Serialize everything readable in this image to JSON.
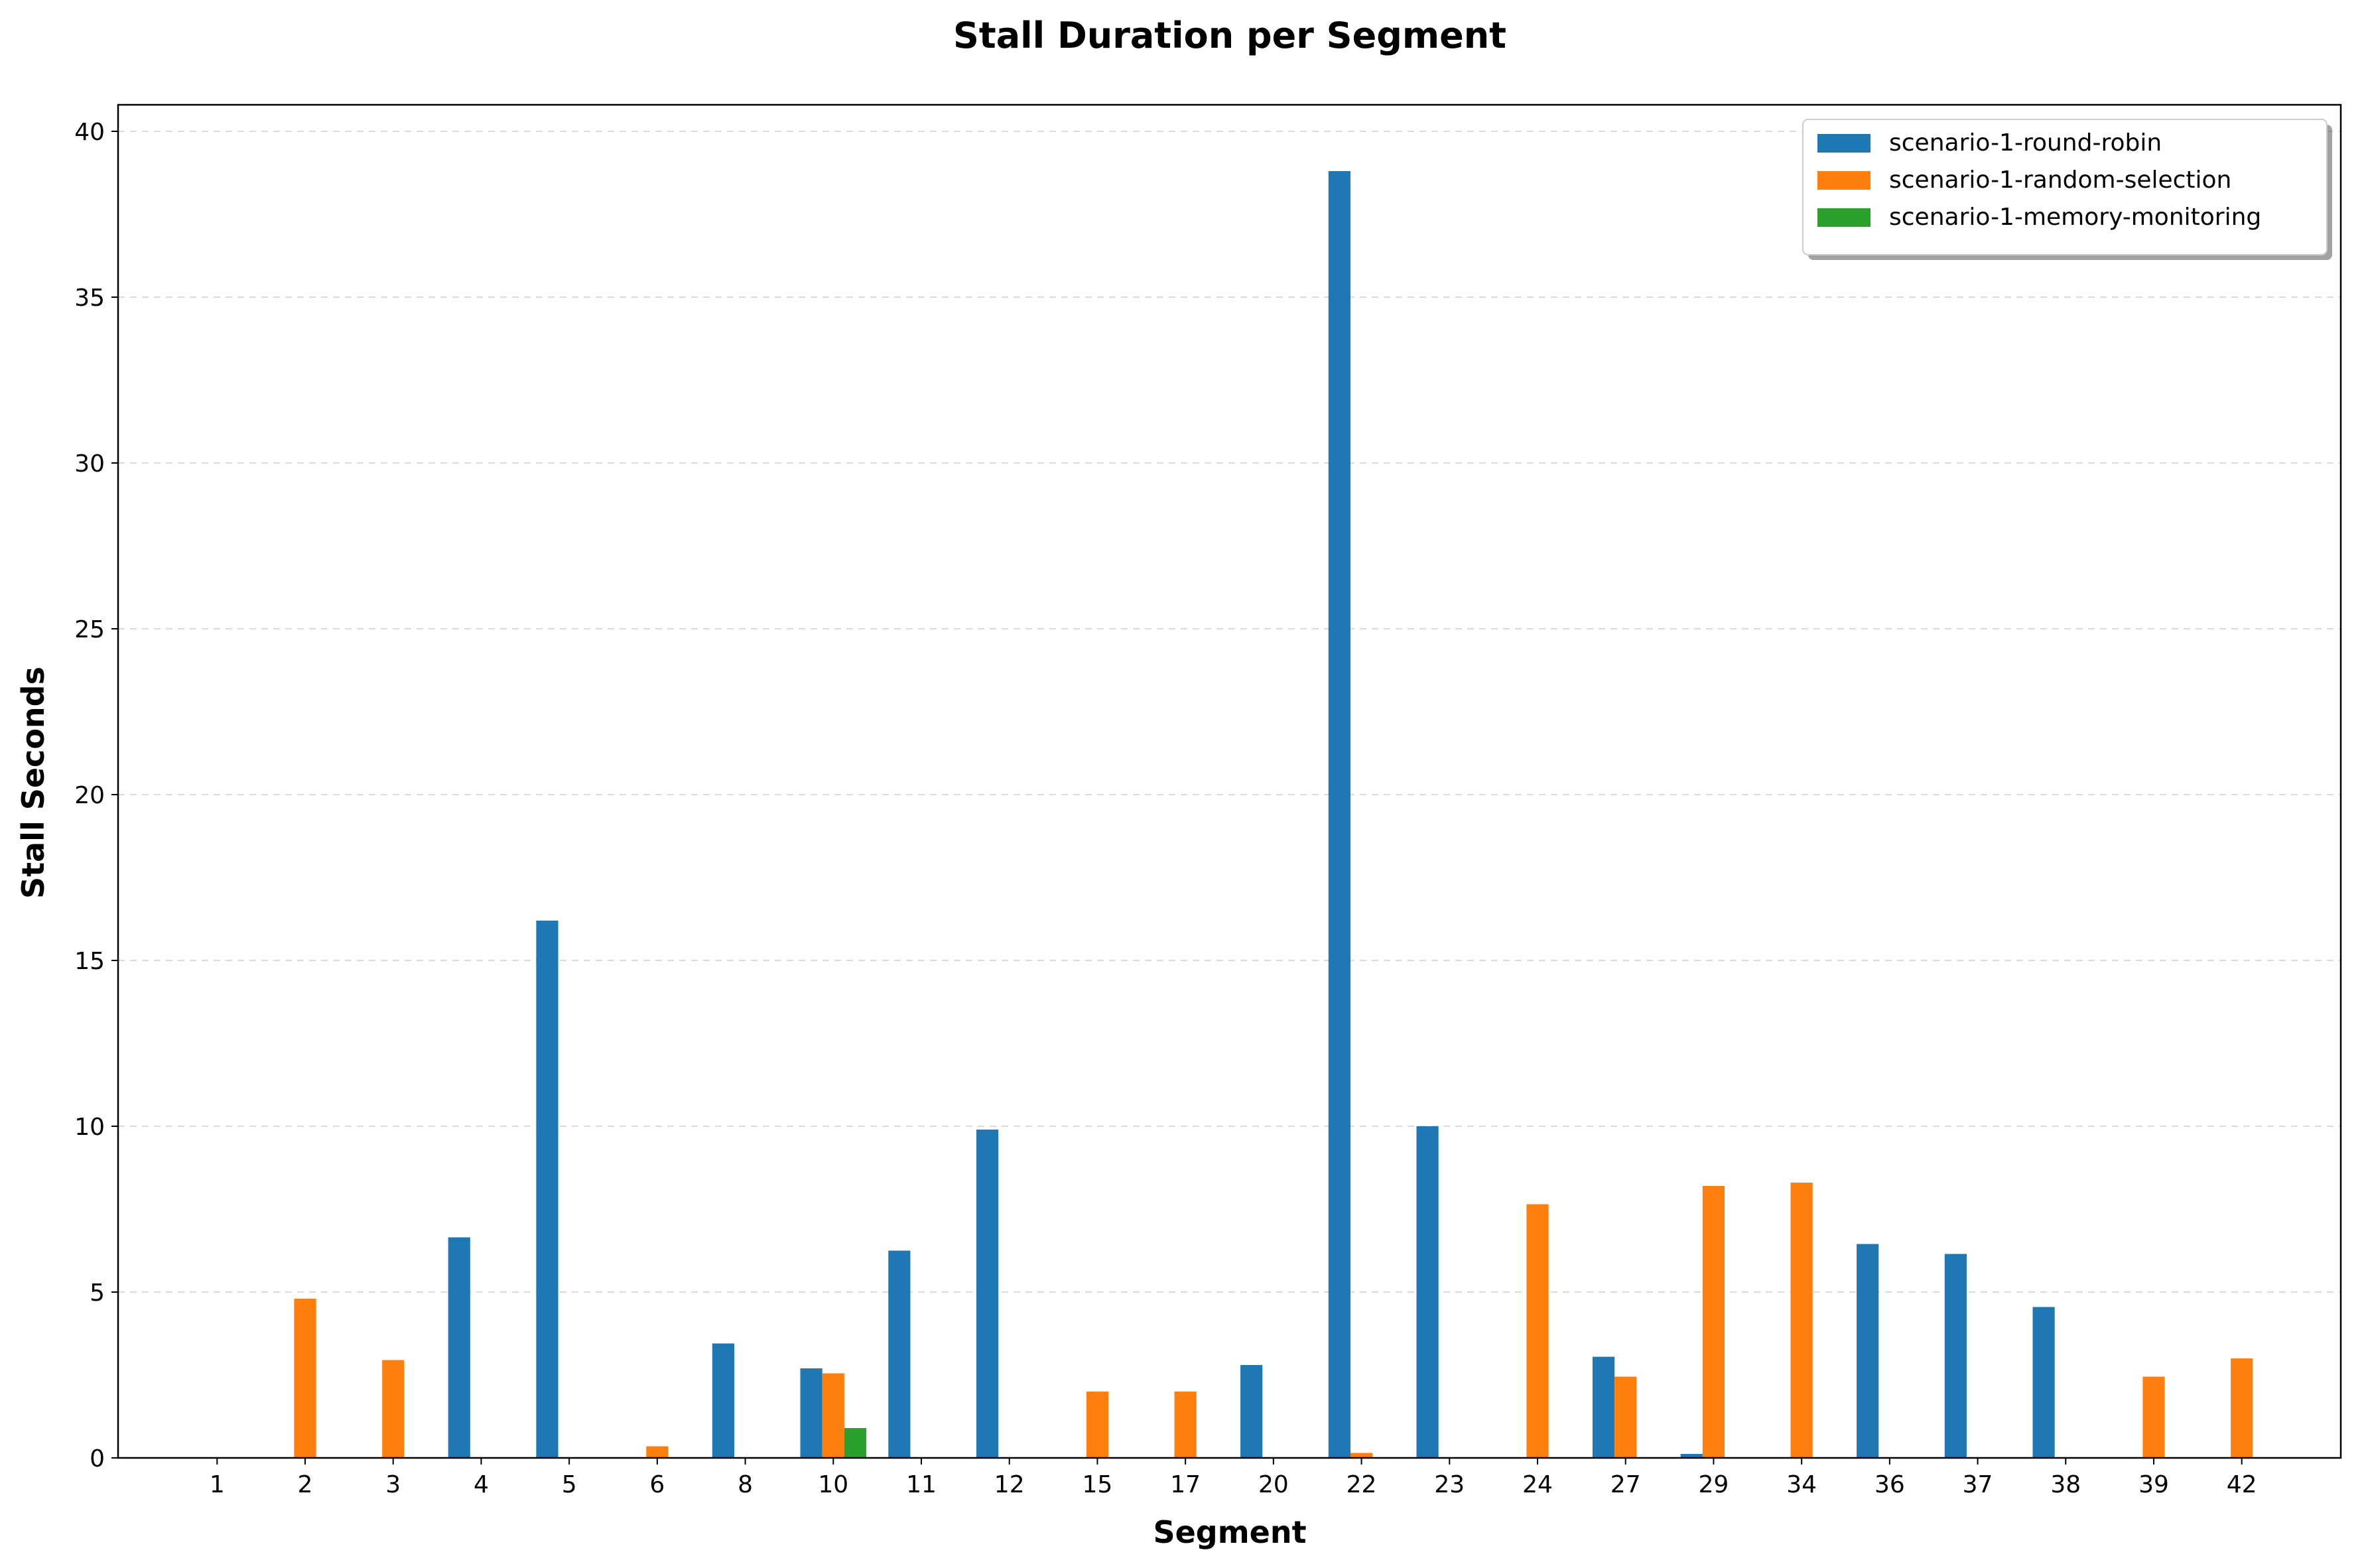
{
  "chart_data": {
    "type": "bar",
    "title": "Stall Duration per Segment",
    "xlabel": "Segment",
    "ylabel": "Stall Seconds",
    "ylim": [
      0,
      40.8
    ],
    "yticks": [
      0,
      5,
      10,
      15,
      20,
      25,
      30,
      35,
      40
    ],
    "grid": "y-dashed",
    "legend_position": "top-right",
    "categories": [
      "1",
      "2",
      "3",
      "4",
      "5",
      "6",
      "8",
      "10",
      "11",
      "12",
      "15",
      "17",
      "20",
      "22",
      "23",
      "24",
      "27",
      "29",
      "34",
      "36",
      "37",
      "38",
      "39",
      "42"
    ],
    "series": [
      {
        "name": "scenario-1-round-robin",
        "color": "#1f77b4",
        "values": [
          0,
          0,
          0,
          6.65,
          16.2,
          0,
          3.45,
          2.7,
          6.25,
          9.9,
          0,
          0,
          2.8,
          38.8,
          10.0,
          0,
          3.05,
          0.12,
          0,
          6.45,
          6.15,
          4.55,
          0,
          0
        ]
      },
      {
        "name": "scenario-1-random-selection",
        "color": "#ff7f0e",
        "values": [
          0,
          4.8,
          2.95,
          0,
          0,
          0.35,
          0,
          2.55,
          0,
          0,
          2.0,
          2.0,
          0,
          0.15,
          0,
          7.65,
          2.45,
          8.2,
          8.3,
          0,
          0,
          0,
          2.45,
          3.0
        ]
      },
      {
        "name": "scenario-1-memory-monitoring",
        "color": "#2ca02c",
        "values": [
          0,
          0,
          0,
          0,
          0,
          0,
          0,
          0.9,
          0,
          0,
          0,
          0,
          0,
          0,
          0,
          0,
          0,
          0,
          0,
          0,
          0,
          0,
          0,
          0
        ]
      }
    ]
  }
}
